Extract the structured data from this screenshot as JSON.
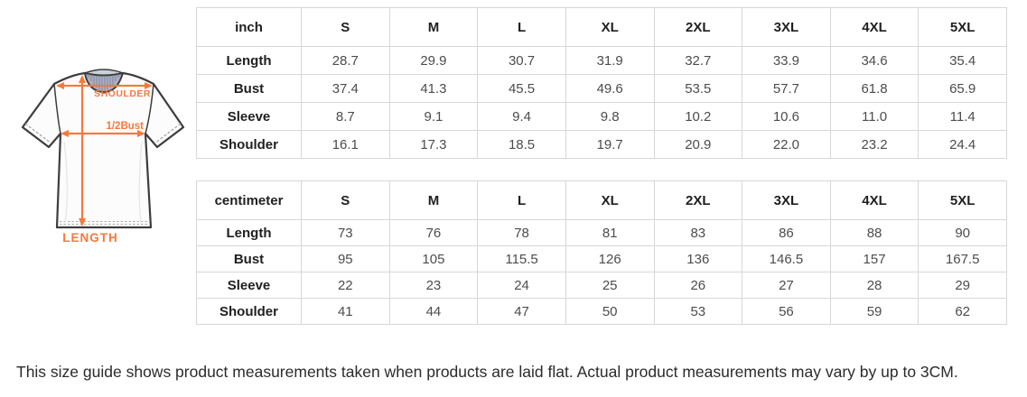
{
  "diagram": {
    "labels": {
      "shoulder": "SHOULDER",
      "half_bust": "1/2Bust",
      "length": "LENGTH"
    },
    "accent_color": "#f7793c",
    "outline_color": "#3d3d3d",
    "collar_color": "#aab1c3"
  },
  "tables": [
    {
      "unit_header": "inch",
      "size_headers": [
        "S",
        "M",
        "L",
        "XL",
        "2XL",
        "3XL",
        "4XL",
        "5XL"
      ],
      "rows": [
        {
          "label": "Length",
          "values": [
            "28.7",
            "29.9",
            "30.7",
            "31.9",
            "32.7",
            "33.9",
            "34.6",
            "35.4"
          ]
        },
        {
          "label": "Bust",
          "values": [
            "37.4",
            "41.3",
            "45.5",
            "49.6",
            "53.5",
            "57.7",
            "61.8",
            "65.9"
          ]
        },
        {
          "label": "Sleeve",
          "values": [
            "8.7",
            "9.1",
            "9.4",
            "9.8",
            "10.2",
            "10.6",
            "11.0",
            "11.4"
          ]
        },
        {
          "label": "Shoulder",
          "values": [
            "16.1",
            "17.3",
            "18.5",
            "19.7",
            "20.9",
            "22.0",
            "23.2",
            "24.4"
          ]
        }
      ]
    },
    {
      "unit_header": "centimeter",
      "size_headers": [
        "S",
        "M",
        "L",
        "XL",
        "2XL",
        "3XL",
        "4XL",
        "5XL"
      ],
      "rows": [
        {
          "label": "Length",
          "values": [
            "73",
            "76",
            "78",
            "81",
            "83",
            "86",
            "88",
            "90"
          ]
        },
        {
          "label": "Bust",
          "values": [
            "95",
            "105",
            "115.5",
            "126",
            "136",
            "146.5",
            "157",
            "167.5"
          ]
        },
        {
          "label": "Sleeve",
          "values": [
            "22",
            "23",
            "24",
            "25",
            "26",
            "27",
            "28",
            "29"
          ]
        },
        {
          "label": "Shoulder",
          "values": [
            "41",
            "44",
            "47",
            "50",
            "53",
            "56",
            "59",
            "62"
          ]
        }
      ]
    }
  ],
  "footnote": "This size guide shows product measurements taken when products are laid flat. Actual product measurements may vary by up to 3CM."
}
